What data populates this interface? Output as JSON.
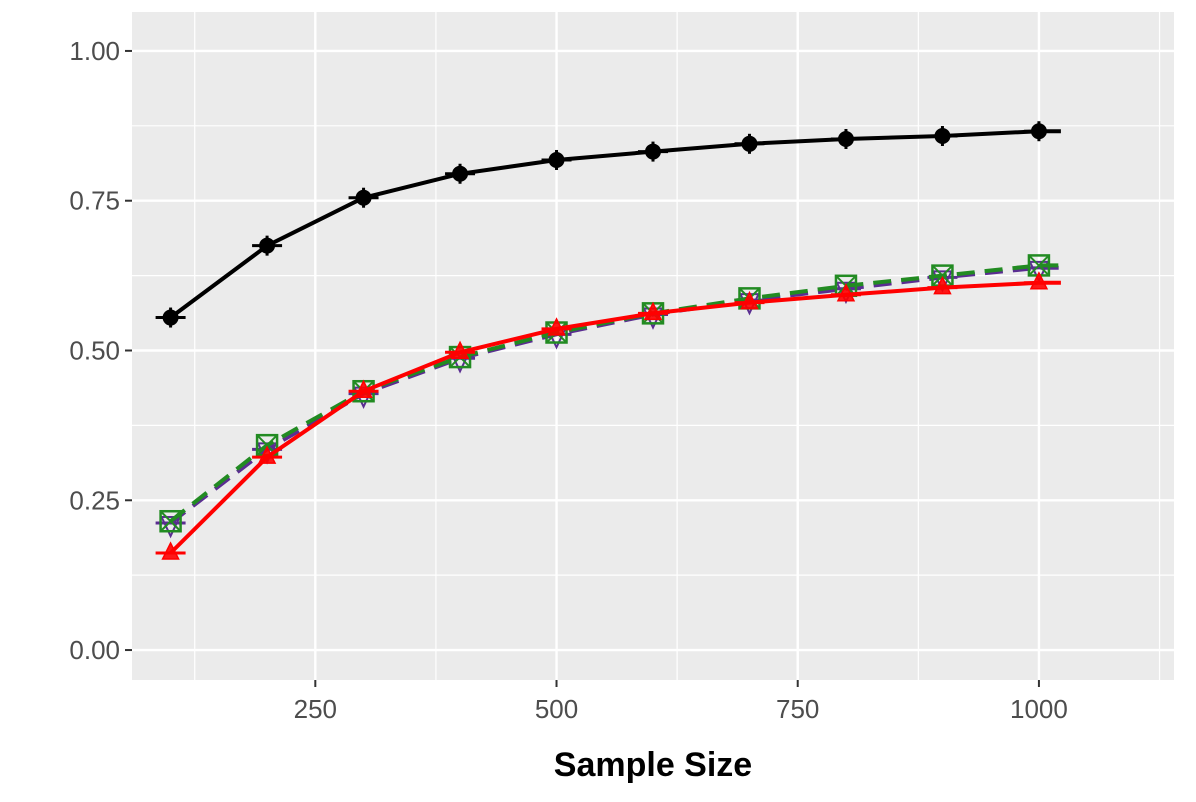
{
  "chart_data": {
    "type": "line",
    "xlabel": "Sample Size",
    "ylabel": "",
    "xlim": [
      60,
      1140
    ],
    "ylim": [
      -0.05,
      1.065
    ],
    "x_ticks": [
      250,
      500,
      750,
      1000
    ],
    "x_tick_labels": [
      "250",
      "500",
      "750",
      "1000"
    ],
    "y_ticks": [
      0.0,
      0.25,
      0.5,
      0.75,
      1.0
    ],
    "y_tick_labels": [
      "0.00",
      "0.25",
      "0.50",
      "0.75",
      "1.00"
    ],
    "grid": true,
    "legend": "none",
    "x": [
      100,
      200,
      300,
      400,
      500,
      600,
      700,
      800,
      900,
      1000
    ],
    "series": [
      {
        "color": "#000000",
        "line": "solid",
        "marker": "plus-dot",
        "values": [
          0.555,
          0.675,
          0.755,
          0.795,
          0.818,
          0.832,
          0.845,
          0.853,
          0.858,
          0.866
        ]
      },
      {
        "color": "#ff0000",
        "line": "solid",
        "marker": "triangle",
        "values": [
          0.162,
          0.322,
          0.432,
          0.497,
          0.536,
          0.562,
          0.58,
          0.593,
          0.605,
          0.613
        ]
      },
      {
        "color": "#5a2d91",
        "line": "dashed",
        "marker": "triangle-down",
        "values": [
          0.212,
          0.335,
          0.428,
          0.487,
          0.527,
          0.56,
          0.584,
          0.603,
          0.622,
          0.638
        ]
      },
      {
        "color": "#228b22",
        "line": "dashed",
        "marker": "square-x",
        "values": [
          0.215,
          0.342,
          0.432,
          0.489,
          0.53,
          0.562,
          0.587,
          0.608,
          0.625,
          0.642
        ]
      }
    ]
  }
}
